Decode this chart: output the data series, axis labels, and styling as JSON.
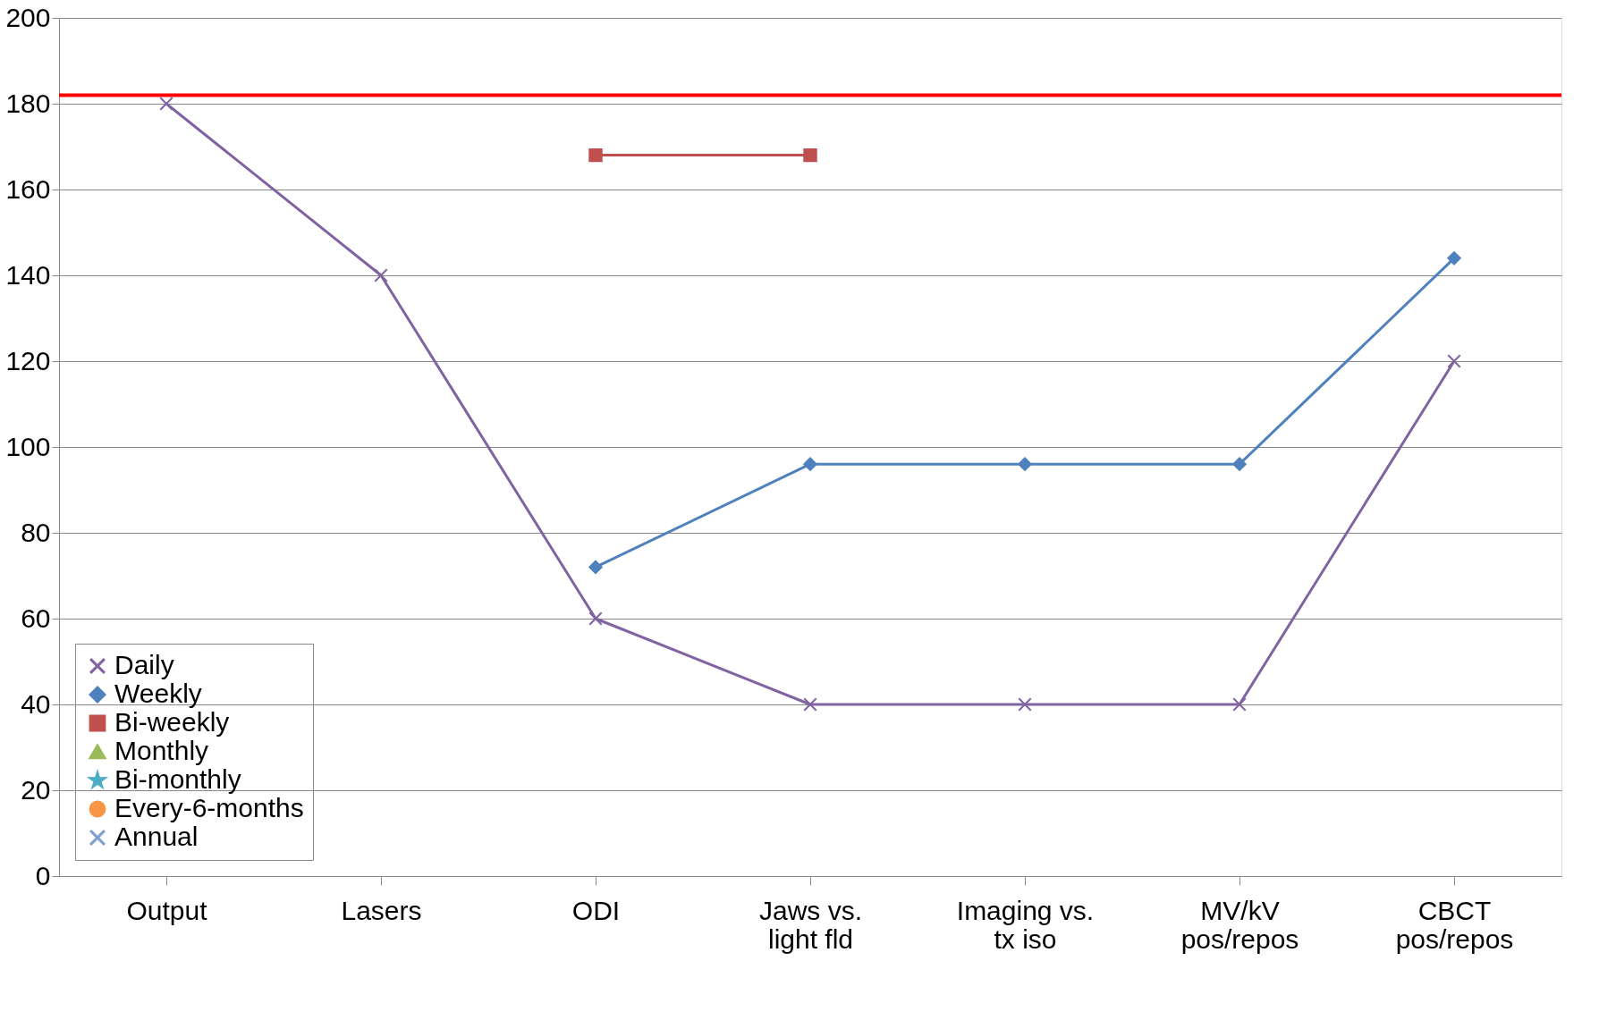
{
  "chart_data": {
    "type": "line",
    "categories": [
      "Output",
      "Lasers",
      "ODI",
      "Jaws vs.\nlight fld",
      "Imaging vs.\ntx iso",
      "MV/kV\npos/repos",
      "CBCT\npos/repos"
    ],
    "series": [
      {
        "name": "Daily",
        "color": "#8064a2",
        "marker": "cross",
        "values": [
          180,
          140,
          60,
          40,
          40,
          40,
          120
        ]
      },
      {
        "name": "Weekly",
        "color": "#4f81bd",
        "marker": "diamond",
        "values": [
          null,
          null,
          72,
          96,
          96,
          96,
          144
        ]
      },
      {
        "name": "Bi-weekly",
        "color": "#c0504d",
        "marker": "square",
        "values": [
          null,
          null,
          168,
          168,
          null,
          null,
          null
        ]
      },
      {
        "name": "Monthly",
        "color": "#9bbb59",
        "marker": "triangle",
        "values": [
          null,
          null,
          null,
          null,
          null,
          null,
          null
        ]
      },
      {
        "name": "Bi-monthly",
        "color": "#4bacc6",
        "marker": "star",
        "values": [
          null,
          null,
          null,
          null,
          null,
          null,
          null
        ]
      },
      {
        "name": "Every-6-months",
        "color": "#f79646",
        "marker": "circle",
        "values": [
          null,
          null,
          null,
          null,
          null,
          null,
          null
        ]
      },
      {
        "name": "Annual",
        "color": "#7f9fcf",
        "marker": "cross",
        "values": [
          null,
          null,
          null,
          null,
          null,
          null,
          null
        ]
      }
    ],
    "ylim": [
      0,
      200
    ],
    "yticks": [
      0,
      20,
      40,
      60,
      80,
      100,
      120,
      140,
      160,
      180,
      200
    ],
    "grid": "y",
    "legend": "bottom left",
    "ref_lines": [
      {
        "axis": "y",
        "value": 182,
        "color": "#ff0000"
      }
    ]
  }
}
